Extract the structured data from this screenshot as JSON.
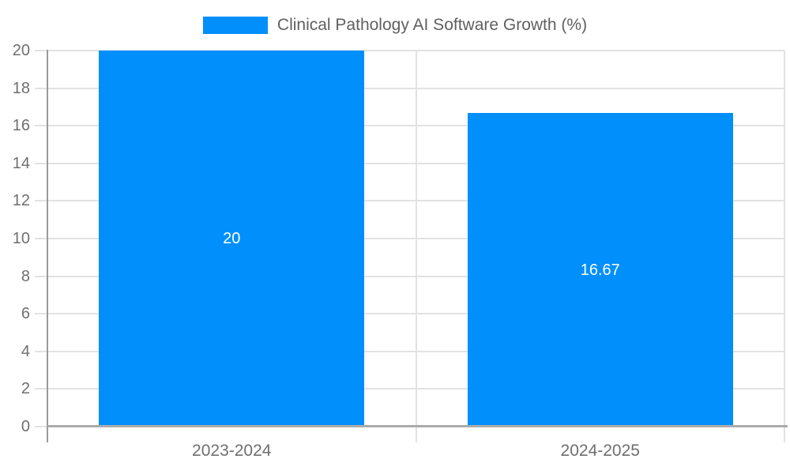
{
  "legend": {
    "label": "Clinical Pathology AI Software Growth (%)",
    "position": "top-center"
  },
  "colors": {
    "bar": "#008ffb",
    "grid": "#e2e2e2",
    "y_axis_line": "#9a9a9a",
    "x_axis_line": "#ababab",
    "tick_label": "#6f6f6f",
    "legend_text": "#606060",
    "data_label": "#ffffff",
    "background": "#ffffff"
  },
  "chart_data": {
    "type": "bar",
    "title": "",
    "xlabel": "",
    "ylabel": "",
    "categories": [
      "2023-2024",
      "2024-2025"
    ],
    "series": [
      {
        "name": "Clinical Pathology AI Software Growth (%)",
        "values": [
          20,
          16.67
        ],
        "color": "#008ffb"
      }
    ],
    "data_labels": {
      "values": [
        "20",
        "16.67"
      ],
      "position": "center"
    },
    "ylim": [
      0,
      20
    ],
    "yticks": [
      0,
      2,
      4,
      6,
      8,
      10,
      12,
      14,
      16,
      18,
      20
    ],
    "grid": {
      "horizontal": true,
      "vertical": "category-boundaries"
    },
    "legend_position": "top-center"
  }
}
